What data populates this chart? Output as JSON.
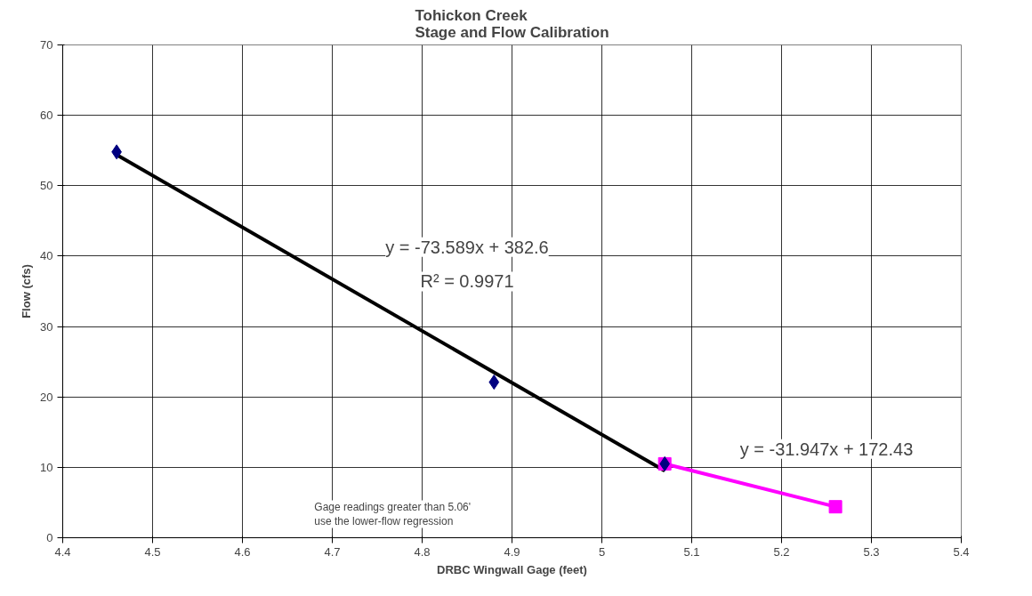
{
  "chart_data": {
    "type": "scatter",
    "title": "Tohickon Creek\nStage and Flow Calibration",
    "xlabel": "DRBC Wingwall Gage (feet)",
    "ylabel": "Flow (cfs)",
    "xlim": [
      4.4,
      5.4
    ],
    "xticks": [
      4.4,
      4.5,
      4.6,
      4.7,
      4.8,
      4.9,
      5,
      5.1,
      5.2,
      5.3,
      5.4
    ],
    "ylim": [
      0,
      70
    ],
    "yticks": [
      0,
      10,
      20,
      30,
      40,
      50,
      60,
      70
    ],
    "grid": true,
    "series": [
      {
        "type": "line",
        "color": "#000000",
        "x": [
          4.46,
          5.07
        ],
        "values": [
          54.4,
          9.5
        ],
        "marker": "none",
        "line_style": "solid"
      },
      {
        "type": "line",
        "color": "#ff00ff",
        "x": [
          5.07,
          5.26
        ],
        "values": [
          10.5,
          4.4
        ],
        "marker": "square",
        "line_style": "solid"
      },
      {
        "color": "#000080",
        "x": [
          4.46,
          4.88,
          5.07
        ],
        "values": [
          54.8,
          22.1,
          10.5
        ],
        "marker": "diamond"
      }
    ],
    "annotations": [
      "y = -73.589x + 382.6",
      "R² = 0.9971",
      "y = -31.947x + 172.43",
      "Gage readings greater than 5.06'\nuse the lower-flow regression"
    ]
  }
}
